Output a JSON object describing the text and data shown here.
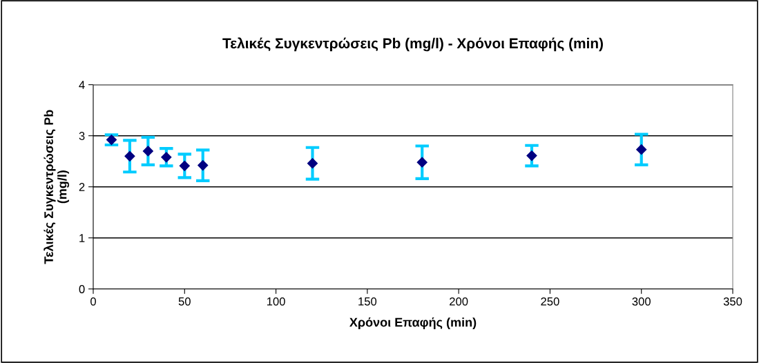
{
  "chart_data": {
    "type": "scatter",
    "title": "Τελικές Συγκεντρώσεις Pb (mg/l) - Χρόνοι Επαφής (min)",
    "xlabel": "Χρόνοι Επαφής (min)",
    "ylabel": "Τελικές Συγκεντρώσεις Pb\n(mg/l)",
    "x": [
      10,
      20,
      30,
      40,
      50,
      60,
      120,
      180,
      240,
      300
    ],
    "series": [
      {
        "color": "#000080",
        "values": [
          2.92,
          2.6,
          2.7,
          2.58,
          2.41,
          2.42,
          2.46,
          2.48,
          2.61,
          2.73
        ],
        "errors": [
          0.1,
          0.31,
          0.27,
          0.17,
          0.23,
          0.3,
          0.31,
          0.32,
          0.2,
          0.3
        ]
      }
    ],
    "xlim": [
      0,
      350
    ],
    "xticks": [
      0,
      50,
      100,
      150,
      200,
      250,
      300,
      350
    ],
    "ylim": [
      0,
      4
    ],
    "yticks": [
      0,
      1,
      2,
      3,
      4
    ],
    "grid": "y",
    "marker": "diamond",
    "legend": false
  }
}
